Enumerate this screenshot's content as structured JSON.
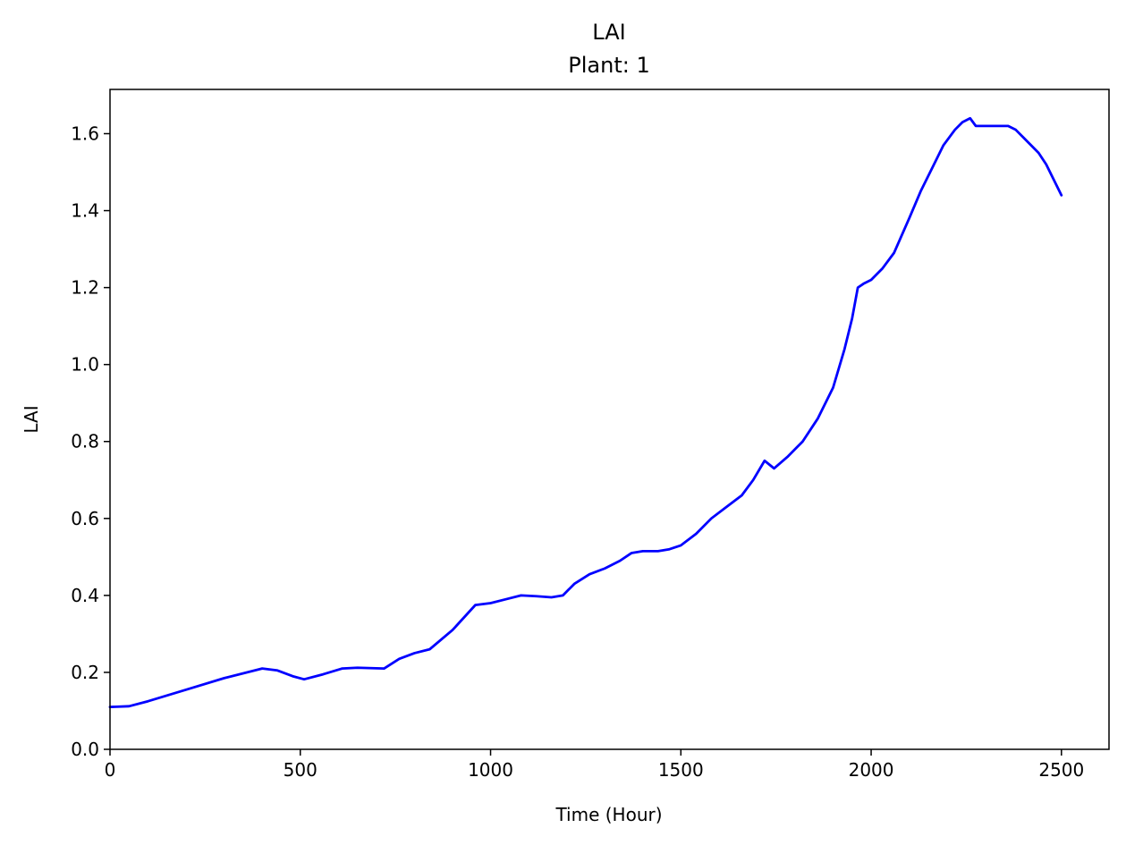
{
  "chart_data": {
    "type": "line",
    "title": "LAI",
    "subtitle": "Plant: 1",
    "xlabel": "Time (Hour)",
    "ylabel": "LAI",
    "xlim": [
      0,
      2625
    ],
    "ylim": [
      0,
      1.715
    ],
    "xticks": [
      0,
      500,
      1000,
      1500,
      2000,
      2500
    ],
    "yticks": [
      0.0,
      0.2,
      0.4,
      0.6,
      0.8,
      1.0,
      1.2,
      1.4,
      1.6
    ],
    "xtick_labels": [
      "0",
      "500",
      "1000",
      "1500",
      "2000",
      "2500"
    ],
    "ytick_labels": [
      "0.0",
      "0.2",
      "0.4",
      "0.6",
      "0.8",
      "1.0",
      "1.2",
      "1.4",
      "1.6"
    ],
    "grid": false,
    "series": [
      {
        "color": "#0000ff",
        "x": [
          0,
          50,
          100,
          200,
          300,
          400,
          440,
          480,
          510,
          560,
          610,
          650,
          720,
          760,
          800,
          840,
          900,
          960,
          1000,
          1040,
          1080,
          1120,
          1160,
          1190,
          1220,
          1260,
          1300,
          1340,
          1370,
          1400,
          1440,
          1470,
          1500,
          1540,
          1580,
          1620,
          1660,
          1690,
          1720,
          1745,
          1780,
          1820,
          1860,
          1900,
          1930,
          1950,
          1965,
          1980,
          2000,
          2030,
          2060,
          2100,
          2130,
          2160,
          2190,
          2220,
          2240,
          2260,
          2275,
          2300,
          2360,
          2380,
          2400,
          2420,
          2440,
          2460,
          2480,
          2500
        ],
        "y": [
          0.11,
          0.112,
          0.125,
          0.155,
          0.185,
          0.21,
          0.205,
          0.19,
          0.182,
          0.195,
          0.21,
          0.212,
          0.21,
          0.235,
          0.25,
          0.26,
          0.31,
          0.375,
          0.38,
          0.39,
          0.4,
          0.398,
          0.395,
          0.4,
          0.43,
          0.455,
          0.47,
          0.49,
          0.51,
          0.515,
          0.515,
          0.52,
          0.53,
          0.56,
          0.6,
          0.63,
          0.66,
          0.7,
          0.75,
          0.73,
          0.76,
          0.8,
          0.86,
          0.94,
          1.04,
          1.12,
          1.2,
          1.21,
          1.22,
          1.25,
          1.29,
          1.38,
          1.45,
          1.51,
          1.57,
          1.61,
          1.63,
          1.64,
          1.62,
          1.62,
          1.62,
          1.61,
          1.59,
          1.57,
          1.55,
          1.52,
          1.48,
          1.44
        ]
      }
    ]
  }
}
